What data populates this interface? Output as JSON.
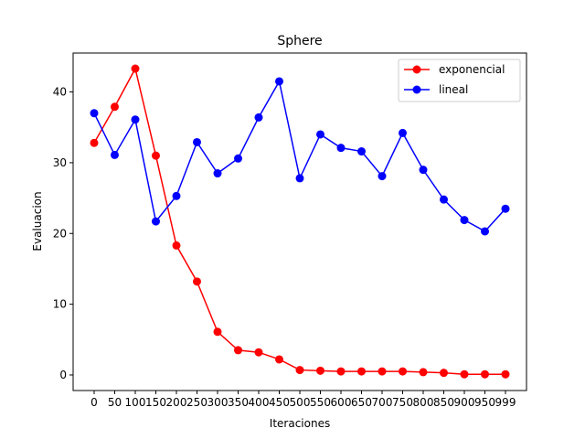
{
  "chart_data": {
    "type": "line",
    "title": "Sphere",
    "xlabel": "Iteraciones",
    "ylabel": "Evaluacion",
    "categories": [
      "0",
      "50",
      "100",
      "150",
      "200",
      "250",
      "300",
      "350",
      "400",
      "450",
      "500",
      "550",
      "600",
      "650",
      "700",
      "750",
      "800",
      "850",
      "900",
      "950",
      "999"
    ],
    "yticks": [
      0,
      10,
      20,
      30,
      40
    ],
    "ylim": [
      -2.2,
      45.5
    ],
    "grid": false,
    "legend_position": "top-right",
    "series": [
      {
        "name": "exponencial",
        "color": "#ff0000",
        "values": [
          32.8,
          37.9,
          43.3,
          31.0,
          18.3,
          13.2,
          6.1,
          3.5,
          3.2,
          2.2,
          0.7,
          0.6,
          0.5,
          0.5,
          0.5,
          0.5,
          0.4,
          0.3,
          0.1,
          0.1,
          0.1
        ]
      },
      {
        "name": "lineal",
        "color": "#0000ff",
        "values": [
          37.0,
          31.1,
          36.1,
          21.7,
          25.3,
          32.9,
          28.5,
          30.6,
          36.4,
          41.5,
          27.8,
          34.0,
          32.1,
          31.6,
          28.1,
          34.2,
          29.0,
          24.8,
          21.9,
          20.3,
          23.5
        ]
      }
    ]
  }
}
